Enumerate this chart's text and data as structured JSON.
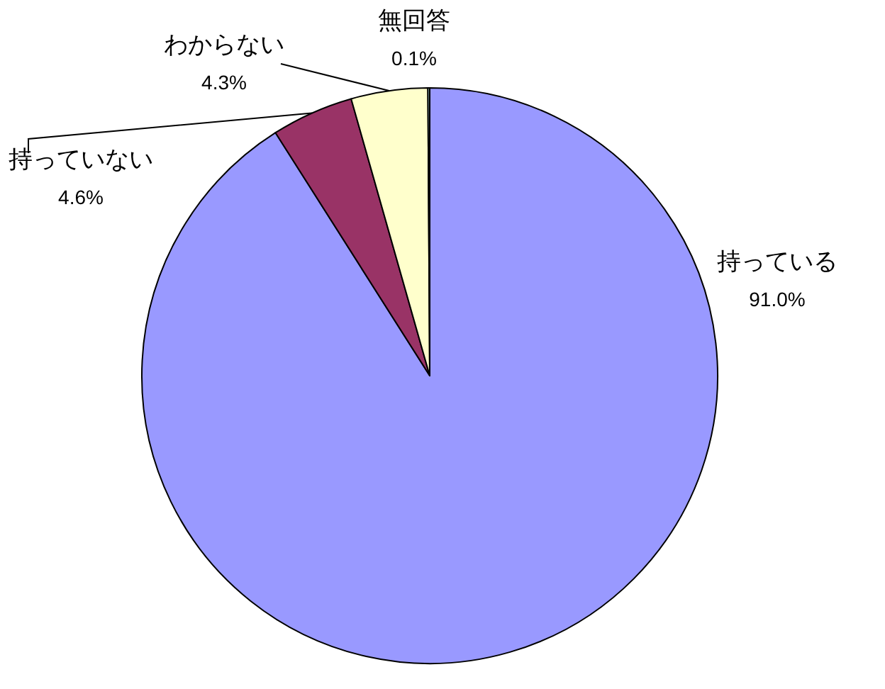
{
  "chart_data": {
    "type": "pie",
    "categories": [
      "持っている",
      "持っていない",
      "わからない",
      "無回答"
    ],
    "values": [
      91.0,
      4.6,
      4.3,
      0.1
    ],
    "value_labels": [
      "91.0%",
      "4.6%",
      "4.3%",
      "0.1%"
    ],
    "colors": [
      "#9999ff",
      "#993366",
      "#ffffcc",
      "#ccffff"
    ],
    "legend": false
  }
}
